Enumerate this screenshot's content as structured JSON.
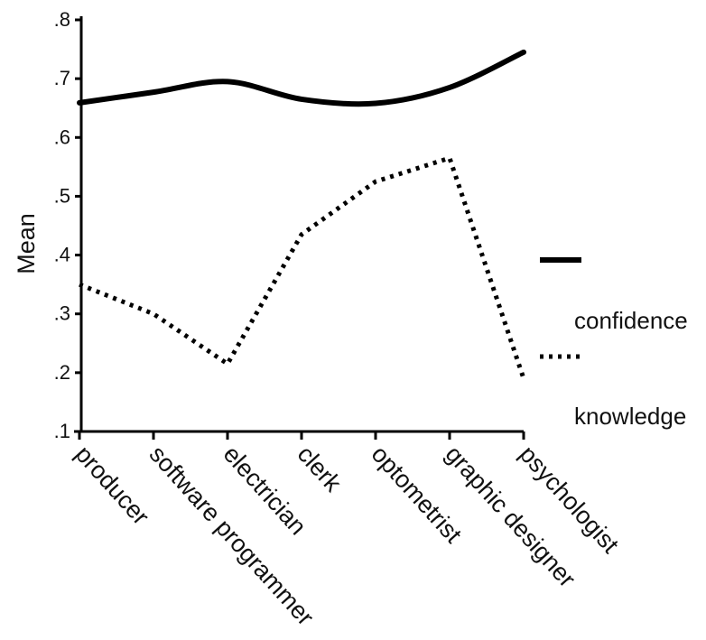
{
  "chart_data": {
    "type": "line",
    "title": "",
    "xlabel": "",
    "ylabel": "Mean",
    "categories": [
      "producer",
      "software programmer",
      "electrician",
      "clerk",
      "optometrist",
      "graphic designer",
      "psychologist"
    ],
    "ylim": [
      0.1,
      0.8
    ],
    "yticks": [
      0.1,
      0.2,
      0.3,
      0.4,
      0.5,
      0.6,
      0.7,
      0.8
    ],
    "ytick_labels": [
      ".1",
      ".2",
      ".3",
      ".4",
      ".5",
      ".6",
      ".7",
      ".8"
    ],
    "grid": false,
    "legend_position": "right",
    "series": [
      {
        "name": "confidence",
        "style": "solid",
        "color": "#000000",
        "values": [
          0.659,
          0.677,
          0.695,
          0.665,
          0.658,
          0.685,
          0.745
        ]
      },
      {
        "name": "knowledge",
        "style": "dotted",
        "color": "#000000",
        "values": [
          0.35,
          0.3,
          0.215,
          0.435,
          0.525,
          0.565,
          0.19
        ]
      }
    ]
  }
}
